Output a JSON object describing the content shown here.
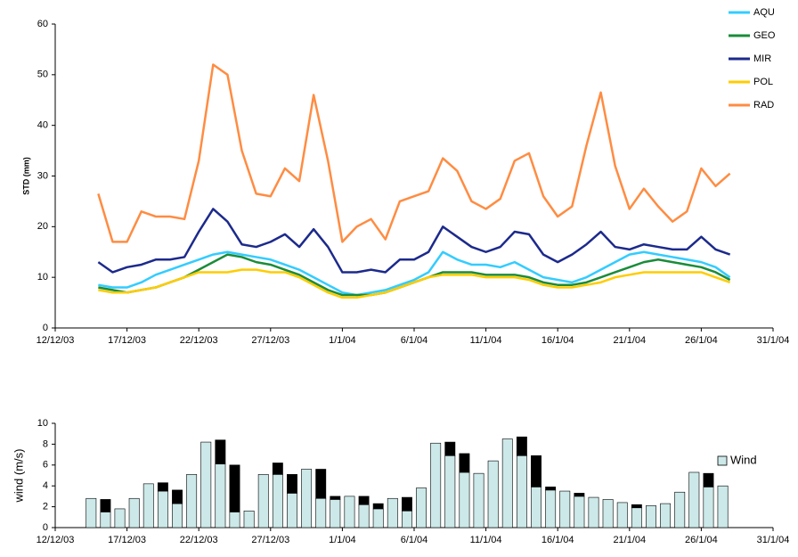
{
  "chart_data": [
    {
      "type": "line",
      "y_label": "STD (mm)",
      "legend": "upper right",
      "grid": false,
      "x": [
        "15/12/03",
        "16/12/03",
        "17/12/03",
        "18/12/03",
        "19/12/03",
        "20/12/03",
        "21/12/03",
        "22/12/03",
        "23/12/03",
        "24/12/03",
        "25/12/03",
        "26/12/03",
        "27/12/03",
        "28/12/03",
        "29/12/03",
        "30/12/03",
        "31/12/03",
        "1/1/04",
        "2/1/04",
        "3/1/04",
        "4/1/04",
        "5/1/04",
        "6/1/04",
        "7/1/04",
        "8/1/04",
        "9/1/04",
        "10/1/04",
        "11/1/04",
        "12/1/04",
        "13/1/04",
        "14/1/04",
        "15/1/04",
        "16/1/04",
        "17/1/04",
        "18/1/04",
        "19/1/04",
        "20/1/04",
        "21/1/04",
        "22/1/04",
        "23/1/04",
        "24/1/04",
        "25/1/04",
        "26/1/04",
        "27/1/04",
        "28/1/04"
      ],
      "xlim": [
        "12/12/03",
        "31/1/04"
      ],
      "xticks": [
        "12/12/03",
        "17/12/03",
        "22/12/03",
        "27/12/03",
        "1/1/04",
        "6/1/04",
        "11/1/04",
        "16/1/04",
        "21/1/04",
        "26/1/04",
        "31/1/04"
      ],
      "ylim": [
        0,
        60
      ],
      "yticks": [
        0,
        10,
        20,
        30,
        40,
        50,
        60
      ],
      "series": [
        {
          "name": "AQU",
          "color": "#33ccff",
          "values": [
            8.5,
            8,
            8,
            9,
            10.5,
            11.5,
            12.5,
            13.5,
            14.5,
            15,
            14.5,
            14,
            13.5,
            12.5,
            11.5,
            10,
            8.5,
            7,
            6.5,
            7,
            7.5,
            8.5,
            9.5,
            11,
            15,
            13.5,
            12.5,
            12.5,
            12,
            13,
            11.5,
            10,
            9.5,
            9,
            10,
            11.5,
            13,
            14.5,
            15,
            14.5,
            14,
            13.5,
            13,
            12,
            10
          ]
        },
        {
          "name": "GEO",
          "color": "#1a8c3a",
          "values": [
            8,
            7.5,
            7,
            7.5,
            8,
            9,
            10,
            11.5,
            13,
            14.5,
            14,
            13,
            12.5,
            11.5,
            10.5,
            9,
            7.5,
            6.5,
            6.5,
            6.5,
            7,
            8,
            9,
            10,
            11,
            11,
            11,
            10.5,
            10.5,
            10.5,
            10,
            9,
            8.5,
            8.5,
            9,
            10,
            11,
            12,
            13,
            13.5,
            13,
            12.5,
            12,
            11,
            9.5
          ]
        },
        {
          "name": "MIR",
          "color": "#1c2a8c",
          "values": [
            13,
            11,
            12,
            12.5,
            13.5,
            13.5,
            14,
            19,
            23.5,
            21,
            16.5,
            16,
            17,
            18.5,
            16,
            19.5,
            16,
            11,
            11,
            11.5,
            11,
            13.5,
            13.5,
            15,
            20,
            18,
            16,
            15,
            16,
            19,
            18.5,
            14.5,
            13,
            14.5,
            16.5,
            19,
            16,
            15.5,
            16.5,
            16,
            15.5,
            15.5,
            18,
            15.5,
            14.5
          ]
        },
        {
          "name": "POL",
          "color": "#ffcc00",
          "values": [
            7.5,
            7,
            7,
            7.5,
            8,
            9,
            10,
            11,
            11,
            11,
            11.5,
            11.5,
            11,
            11,
            10,
            8.5,
            7,
            6,
            6,
            6.5,
            7,
            8,
            9,
            10,
            10.5,
            10.5,
            10.5,
            10,
            10,
            10,
            9.5,
            8.5,
            8,
            8,
            8.5,
            9,
            10,
            10.5,
            11,
            11,
            11,
            11,
            11,
            10,
            9
          ]
        },
        {
          "name": "RAD",
          "color": "#ff8c42",
          "values": [
            26.5,
            17,
            17,
            23,
            22,
            22,
            21.5,
            33,
            52,
            50,
            35,
            26.5,
            26,
            31.5,
            29,
            46,
            33,
            17,
            20,
            21.5,
            17.5,
            25,
            26,
            27,
            33.5,
            31,
            25,
            23.5,
            25.5,
            33,
            34.5,
            26,
            22,
            24,
            36,
            46.5,
            32,
            23.5,
            27.5,
            24,
            21,
            23,
            31.5,
            28,
            30.5
          ]
        }
      ]
    },
    {
      "type": "bar",
      "y_label": "wind (m/s)",
      "legend": "upper right",
      "stacked": true,
      "x": [
        "14/12/03",
        "15/12/03",
        "16/12/03",
        "17/12/03",
        "18/12/03",
        "19/12/03",
        "20/12/03",
        "21/12/03",
        "22/12/03",
        "23/12/03",
        "24/12/03",
        "25/12/03",
        "26/12/03",
        "27/12/03",
        "28/12/03",
        "29/12/03",
        "30/12/03",
        "31/12/03",
        "1/1/04",
        "2/1/04",
        "3/1/04",
        "4/1/04",
        "5/1/04",
        "6/1/04",
        "7/1/04",
        "8/1/04",
        "9/1/04",
        "10/1/04",
        "11/1/04",
        "12/1/04",
        "13/1/04",
        "14/1/04",
        "15/1/04",
        "16/1/04",
        "17/1/04",
        "18/1/04",
        "19/1/04",
        "20/1/04",
        "21/1/04",
        "22/1/04",
        "23/1/04",
        "24/1/04",
        "25/1/04",
        "26/1/04",
        "27/1/04"
      ],
      "xlim": [
        "12/12/03",
        "31/1/04"
      ],
      "xticks": [
        "12/12/03",
        "17/12/03",
        "22/12/03",
        "27/12/03",
        "1/1/04",
        "6/1/04",
        "11/1/04",
        "16/1/04",
        "21/1/04",
        "26/1/04",
        "31/1/04"
      ],
      "ylim": [
        0,
        10
      ],
      "yticks": [
        0,
        2,
        4,
        6,
        8,
        10
      ],
      "series": [
        {
          "name": "Wind",
          "color": "#cce8e8",
          "values": [
            2.8,
            1.5,
            1.8,
            2.8,
            4.2,
            3.5,
            2.3,
            5.1,
            8.2,
            6.1,
            1.5,
            1.6,
            5.1,
            5.1,
            3.3,
            5.6,
            2.8,
            2.7,
            3.0,
            2.2,
            1.8,
            2.8,
            1.6,
            3.8,
            8.1,
            6.9,
            5.3,
            5.2,
            6.4,
            8.5,
            6.9,
            3.9,
            3.6,
            3.5,
            3.0,
            2.9,
            2.7,
            2.4,
            1.9,
            2.1,
            2.3,
            3.4,
            5.3,
            3.9,
            4.0
          ]
        },
        {
          "color": "#000000",
          "values": [
            0,
            1.2,
            0,
            0,
            0,
            0.8,
            1.3,
            0,
            0,
            2.3,
            4.5,
            0,
            0,
            1.1,
            1.8,
            0,
            2.8,
            0.3,
            0,
            0.8,
            0.5,
            0,
            1.3,
            0,
            0,
            1.3,
            1.8,
            0,
            0,
            0,
            1.8,
            3.0,
            0.3,
            0,
            0.3,
            0,
            0,
            0,
            0.3,
            0,
            0,
            0,
            0,
            1.3,
            0
          ]
        }
      ]
    }
  ]
}
